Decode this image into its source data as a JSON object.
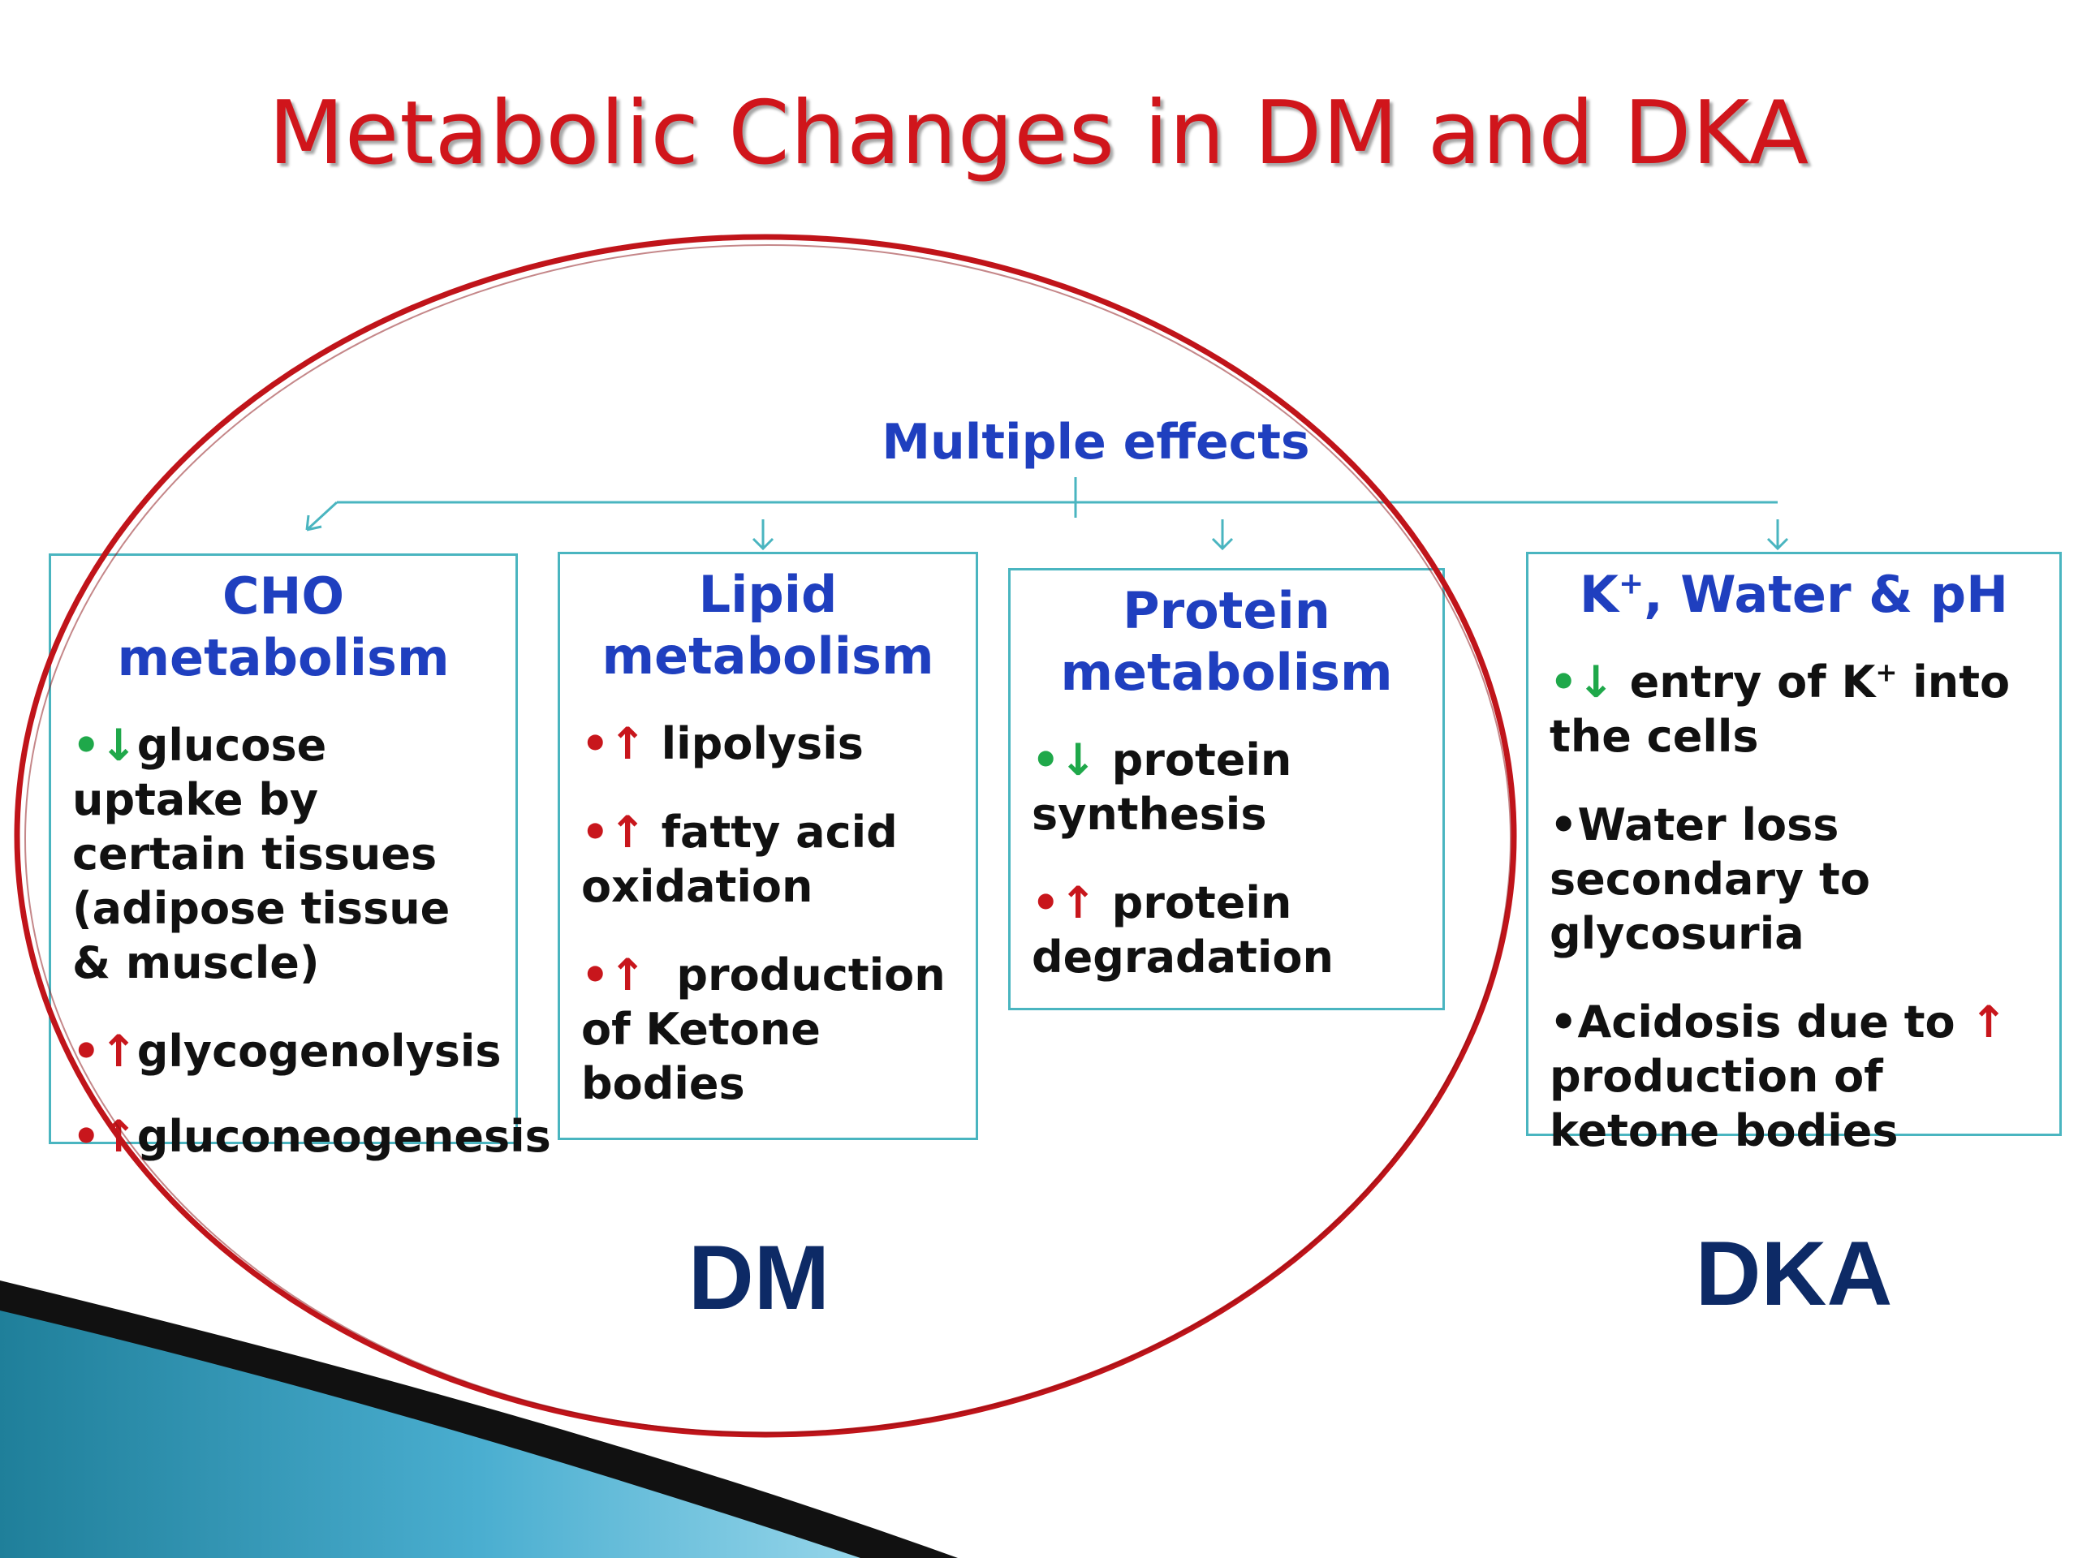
{
  "title": "Metabolic Changes in DM and DKA",
  "root_label": "Multiple effects",
  "colors": {
    "title": "#d0151b",
    "heading": "#1f3fbf",
    "box_border": "#4ab5c0",
    "decrease_arrow": "#1fa84a",
    "increase_arrow": "#c8161c",
    "ellipse": "#c0141a",
    "group_label": "#0d2a66"
  },
  "boxes": [
    {
      "title_line1": "CHO",
      "title_line2": "metabolism",
      "items": [
        {
          "marker": "•↓",
          "direction": "decrease",
          "text": "glucose uptake by certain tissues (adipose tissue & muscle)"
        },
        {
          "marker": "•↑",
          "direction": "increase",
          "text": "glycogenolysis"
        },
        {
          "marker": "•↑",
          "direction": "increase",
          "text": "gluconeogenesis"
        }
      ]
    },
    {
      "title_line1": "Lipid",
      "title_line2": "metabolism",
      "items": [
        {
          "marker": "•↑",
          "direction": "increase",
          "text": " lipolysis"
        },
        {
          "marker": "•↑",
          "direction": "increase",
          "text": " fatty acid oxidation"
        },
        {
          "marker": "•↑",
          "direction": "increase",
          "text": "  production of Ketone bodies"
        }
      ]
    },
    {
      "title_line1": "Protein",
      "title_line2": "metabolism",
      "items": [
        {
          "marker": "•↓",
          "direction": "decrease",
          "text": " protein synthesis"
        },
        {
          "marker": "•↑",
          "direction": "increase",
          "text": " protein degradation"
        }
      ]
    },
    {
      "title_prefix": "K",
      "title_sup": "+",
      "title_suffix": ", Water & pH",
      "items": [
        {
          "marker": "•↓",
          "direction": "decrease",
          "text_a": " entry of K",
          "text_sup": "+",
          "text_b": " into the cells"
        },
        {
          "marker": "•",
          "direction": "none",
          "text": "Water loss secondary to glycosuria"
        },
        {
          "marker": "•",
          "direction": "none",
          "text_a": "Acidosis due to ",
          "arrow": "↑",
          "text_b": " production of ketone bodies"
        }
      ]
    }
  ],
  "groups": {
    "dm_label": "DM",
    "dka_label": "DKA"
  }
}
